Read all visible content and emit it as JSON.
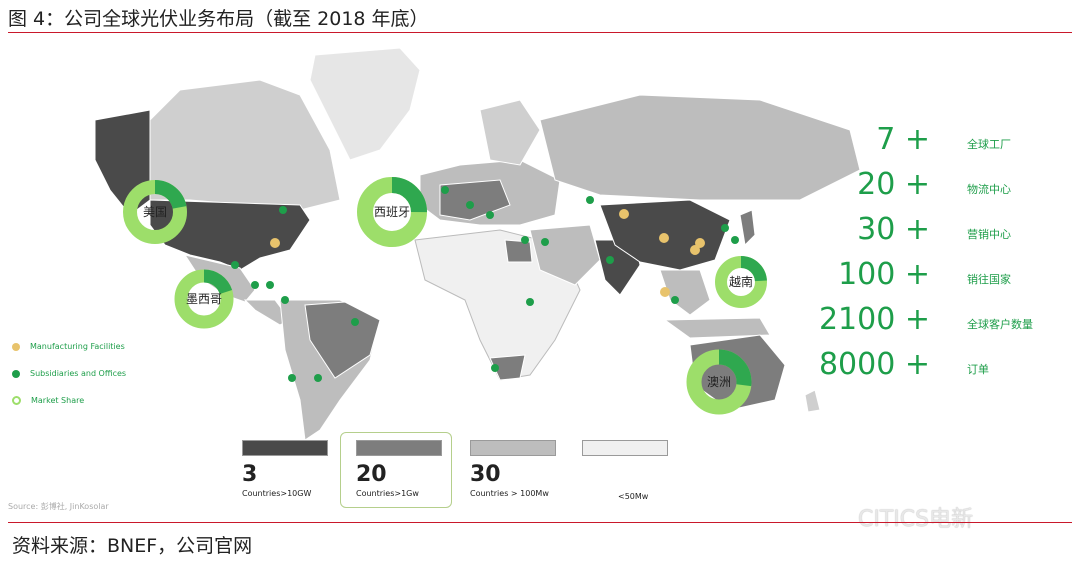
{
  "title": "图 4：公司全球光伏业务布局（截至 2018 年底）",
  "stats": [
    {
      "value": "7 +",
      "label": "全球工厂"
    },
    {
      "value": "20 +",
      "label": "物流中心"
    },
    {
      "value": "30 +",
      "label": "营销中心"
    },
    {
      "value": "100 +",
      "label": "销往国家"
    },
    {
      "value": "2100 +",
      "label": "全球客户数量"
    },
    {
      "value": "8000 +",
      "label": "订单"
    }
  ],
  "legend": {
    "manufacturing": "Manufacturing Facilities",
    "subsidiaries": "Subsidiaries and Offices",
    "market_share": "Market Share"
  },
  "tiers": [
    {
      "number": "3",
      "desc": "Countries>10GW",
      "color": "#4a4a4a"
    },
    {
      "number": "20",
      "desc": "Countries>1Gw",
      "color": "#7d7d7d"
    },
    {
      "number": "30",
      "desc": "Countries > 100Mw",
      "color": "#bdbdbd"
    },
    {
      "number": "",
      "desc": "<50Mw",
      "color": "#f0f0f0"
    }
  ],
  "market_share_rings": [
    {
      "label": "美国",
      "share": 0.22
    },
    {
      "label": "西班牙",
      "share": 0.25
    },
    {
      "label": "墨西哥",
      "share": 0.2
    },
    {
      "label": "越南",
      "share": 0.24
    },
    {
      "label": "澳洲",
      "share": 0.27
    }
  ],
  "colors": {
    "accent_green": "#1e9e4a",
    "ring_light": "#9dde6a",
    "ring_dark": "#2fa84f",
    "rule_red": "#c9182b"
  },
  "credit": "Source: 彭博社, JinKosolar",
  "source": "资料来源：BNEF，公司官网",
  "watermark": "CITICS电新"
}
